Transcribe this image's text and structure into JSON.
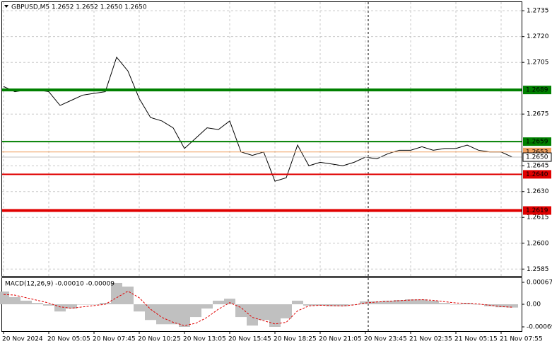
{
  "chart_data": [
    {
      "type": "line",
      "title": "GBPUSD,M5  1.2652 1.2652 1.2650 1.2650",
      "color": "#000000",
      "categories": [
        "20 Nov 2024",
        null,
        null,
        null,
        "20 Nov 05:05",
        null,
        null,
        null,
        "20 Nov 07:45",
        null,
        null,
        null,
        "20 Nov 10:25",
        null,
        null,
        null,
        "20 Nov 13:05",
        null,
        null,
        null,
        "20 Nov 15:45",
        null,
        null,
        null,
        "20 Nov 18:25",
        null,
        null,
        null,
        "20 Nov 21:05",
        null,
        null,
        null,
        "20 Nov 23:45",
        null,
        null,
        null,
        "21 Nov 02:35",
        null,
        null,
        null,
        "21 Nov 05:15",
        null,
        null,
        null,
        "21 Nov 07:55",
        null
      ],
      "values": [
        1.2691,
        1.2688,
        1.2689,
        1.2689,
        1.2688,
        1.268,
        1.2683,
        1.2686,
        1.2687,
        1.2688,
        1.2708,
        1.27,
        1.2684,
        1.2673,
        1.2671,
        1.2667,
        1.2655,
        1.2661,
        1.2667,
        1.2666,
        1.2671,
        1.2653,
        1.2651,
        1.2653,
        1.2636,
        1.2638,
        1.2657,
        1.2645,
        1.2647,
        1.2646,
        1.2645,
        1.2647,
        1.265,
        1.2649,
        1.2652,
        1.2654,
        1.2654,
        1.2656,
        1.2654,
        1.2655,
        1.2655,
        1.2657,
        1.2654,
        1.2653,
        1.2653,
        1.265
      ],
      "ylim": [
        1.2581,
        1.274
      ],
      "yticks": [
        1.2735,
        {
          "value": 1.272,
          "label": "1.2720"
        },
        1.2705,
        1.2675,
        1.2645,
        {
          "value": 1.263,
          "label": "1.2630"
        },
        1.2615,
        {
          "value": 1.26,
          "label": "1.2600"
        },
        1.2585
      ],
      "grid": true,
      "levels": [
        {
          "value": 1.2689,
          "color": "#008000",
          "width": 4
        },
        {
          "value": 1.2659,
          "color": "#008000",
          "width": 2
        },
        {
          "value": 1.2653,
          "color": "#f0a060",
          "width": 1
        },
        {
          "value": 1.265,
          "label": "1.2650",
          "color": "#c0c0c0",
          "width": 1
        },
        {
          "value": 1.264,
          "label": "1.2640",
          "color": "#e00000",
          "width": 2
        },
        {
          "value": 1.2619,
          "color": "#e00000",
          "width": 4
        }
      ]
    },
    {
      "type": "macd",
      "title": "MACD(12,26,9) -0.00010 -0.00009",
      "color": "#c0c0c0",
      "signal_color": "#e00000",
      "values": [
        0.00039,
        0.00022,
        0.00011,
        4e-05,
        -4e-05,
        -0.00022,
        -0.00013,
        0,
        -1e-05,
        4e-05,
        0.00065,
        0.00054,
        -0.00022,
        -0.00048,
        -0.00061,
        -0.00061,
        -0.00069,
        -0.00039,
        -0.00013,
        0.00011,
        0.00017,
        -0.00039,
        -0.00065,
        -0.00048,
        -0.00069,
        -0.00043,
        0.00011,
        -4e-05,
        -4e-05,
        -6e-05,
        -6e-05,
        0,
        9e-05,
        9e-05,
        0.00011,
        0.00013,
        0.00015,
        0.00015,
        0.00011,
        4e-05,
        0,
        4e-05,
        0,
        -6e-05,
        -9e-05,
        -0.0001
      ],
      "signal": [
        0.0003,
        0.00028,
        0.0002,
        0.00012,
        4e-05,
        -8e-05,
        -0.00012,
        -8e-05,
        -4e-05,
        0,
        0.0002,
        0.0004,
        0.0002,
        -0.00015,
        -0.0004,
        -0.00055,
        -0.00065,
        -0.00058,
        -0.0004,
        -0.00015,
        5e-05,
        -0.0001,
        -0.0004,
        -0.0005,
        -0.0006,
        -0.00055,
        -0.0002,
        -5e-05,
        -3e-05,
        -4e-05,
        -5e-05,
        -2e-05,
        4e-05,
        7e-05,
        9e-05,
        0.00011,
        0.00013,
        0.00014,
        0.00012,
        8e-05,
        4e-05,
        3e-05,
        1e-05,
        -3e-05,
        -7e-05,
        -9e-05
      ],
      "ylim": [
        -0.00082,
        0.0008
      ],
      "yticks": [
        0.00067,
        {
          "value": 0,
          "label": "0.00"
        },
        -0.00069
      ]
    }
  ]
}
